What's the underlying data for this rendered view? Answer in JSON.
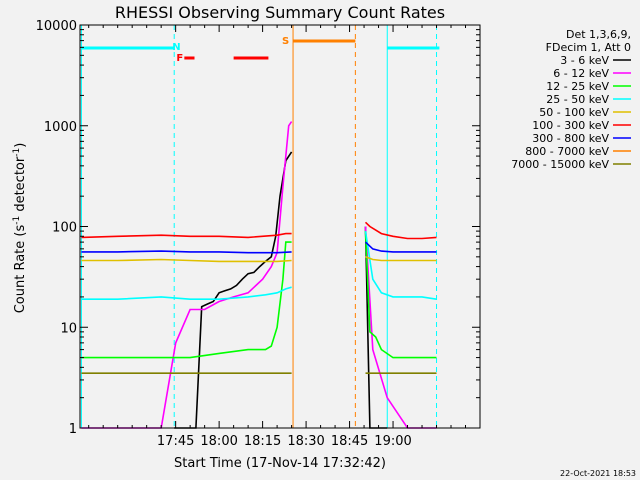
{
  "chart_data": {
    "type": "line",
    "title": "RHESSI Observing Summary Count Rates",
    "xlabel": "Start Time (17-Nov-14 17:32:42)",
    "ylabel_main": "Count Rate (s",
    "ylabel_sup1": "-1",
    "ylabel_mid": " detector",
    "ylabel_sup2": "-1",
    "ylabel_end": ")",
    "y_scale": "log",
    "ylim": [
      1,
      10000
    ],
    "xlim_min": [
      1032,
      1170
    ],
    "x_ticks": [
      {
        "min": 1065,
        "label": "17:45"
      },
      {
        "min": 1080,
        "label": "18:00"
      },
      {
        "min": 1095,
        "label": "18:15"
      },
      {
        "min": 1110,
        "label": "18:30"
      },
      {
        "min": 1125,
        "label": "18:45"
      },
      {
        "min": 1140,
        "label": "19:00"
      }
    ],
    "y_ticks": [
      {
        "value": 1,
        "label": "1"
      },
      {
        "value": 10,
        "label": "10"
      },
      {
        "value": 100,
        "label": "100"
      },
      {
        "value": 1000,
        "label": "1000"
      },
      {
        "value": 10000,
        "label": "10000"
      }
    ],
    "legend_header": [
      "Det 1,3,6,9,",
      "FDecim 1, Att 0"
    ],
    "legend_position": "right",
    "series": [
      {
        "name": "3 - 6 keV",
        "color": "#000000",
        "segments": [
          {
            "x": [
              1064.5,
              1066,
              1068,
              1070,
              1072,
              1074,
              1076,
              1078,
              1080,
              1082,
              1084,
              1086,
              1088,
              1090,
              1092,
              1094,
              1096,
              1098,
              1099.5,
              1101,
              1103,
              1105
            ],
            "y": [
              1,
              1,
              1,
              1,
              1,
              16,
              17,
              18,
              22,
              23,
              24,
              26,
              30,
              34,
              35,
              40,
              45,
              50,
              80,
              200,
              450,
              550
            ]
          },
          {
            "x": [
              1130.5,
              1132,
              1134,
              1136,
              1138
            ],
            "y": [
              100,
              1,
              1,
              1,
              1
            ]
          }
        ]
      },
      {
        "name": "6 - 12 keV",
        "color": "#ff00ff",
        "segments": [
          {
            "x": [
              1032.5,
              1045,
              1060,
              1065,
              1070,
              1075,
              1080,
              1085,
              1090,
              1095,
              1098,
              1100,
              1102,
              1104,
              1105
            ],
            "y": [
              1,
              1,
              1,
              7,
              15,
              15,
              18,
              20,
              22,
              30,
              40,
              55,
              250,
              1000,
              1100
            ]
          },
          {
            "x": [
              1130.5,
              1133,
              1138,
              1145,
              1150,
              1155
            ],
            "y": [
              100,
              6,
              2,
              1,
              1,
              1
            ]
          }
        ]
      },
      {
        "name": "12 - 25 keV",
        "color": "#00ff00",
        "segments": [
          {
            "x": [
              1032.5,
              1045,
              1060,
              1070,
              1080,
              1090,
              1096,
              1098,
              1100,
              1102,
              1103,
              1105
            ],
            "y": [
              5,
              5,
              5,
              5,
              5.5,
              6,
              6,
              6.5,
              10,
              30,
              70,
              70
            ]
          },
          {
            "x": [
              1130.5,
              1132,
              1134,
              1136,
              1140,
              1150,
              1155
            ],
            "y": [
              90,
              9,
              8,
              6,
              5,
              5,
              5
            ]
          }
        ]
      },
      {
        "name": "25 - 50 keV",
        "color": "#00ffff",
        "segments": [
          {
            "x": [
              1032.5,
              1045,
              1060,
              1070,
              1080,
              1090,
              1096,
              1100,
              1103,
              1105
            ],
            "y": [
              19,
              19,
              20,
              19,
              19,
              20,
              21,
              22,
              24,
              25
            ]
          },
          {
            "x": [
              1130.5,
              1133,
              1136,
              1140,
              1150,
              1155
            ],
            "y": [
              90,
              30,
              22,
              20,
              20,
              19
            ]
          }
        ]
      },
      {
        "name": "50 - 100 keV",
        "color": "#e0c000",
        "segments": [
          {
            "x": [
              1032.5,
              1045,
              1060,
              1070,
              1080,
              1090,
              1100,
              1105
            ],
            "y": [
              46,
              46,
              47,
              46,
              45,
              45,
              45,
              46
            ]
          },
          {
            "x": [
              1130.5,
              1133,
              1136,
              1140,
              1150,
              1155
            ],
            "y": [
              50,
              47,
              46,
              46,
              46,
              46
            ]
          }
        ]
      },
      {
        "name": "100 - 300 keV",
        "color": "#ff0000",
        "segments": [
          {
            "x": [
              1032.5,
              1045,
              1060,
              1070,
              1080,
              1090,
              1100,
              1103,
              1105
            ],
            "y": [
              78,
              80,
              82,
              80,
              80,
              78,
              82,
              85,
              85
            ]
          },
          {
            "x": [
              1130.5,
              1132,
              1134,
              1136,
              1140,
              1145,
              1150,
              1155
            ],
            "y": [
              110,
              100,
              92,
              85,
              80,
              76,
              76,
              78
            ]
          }
        ]
      },
      {
        "name": "300 - 800 keV",
        "color": "#0000ff",
        "segments": [
          {
            "x": [
              1032.5,
              1045,
              1060,
              1070,
              1080,
              1090,
              1100,
              1105
            ],
            "y": [
              56,
              56,
              57,
              56,
              56,
              55,
              55,
              56
            ]
          },
          {
            "x": [
              1130.5,
              1133,
              1136,
              1140,
              1150,
              1155
            ],
            "y": [
              70,
              60,
              57,
              56,
              56,
              56
            ]
          }
        ]
      },
      {
        "name": "800 - 7000 keV",
        "color": "#ff8000",
        "segments": []
      },
      {
        "name": "7000 - 15000 keV",
        "color": "#808000",
        "segments": [
          {
            "x": [
              1032.5,
              1045,
              1060,
              1070,
              1080,
              1090,
              1100,
              1105
            ],
            "y": [
              3.5,
              3.5,
              3.5,
              3.5,
              3.5,
              3.5,
              3.5,
              3.5
            ]
          },
          {
            "x": [
              1130.5,
              1140,
              1150,
              1155
            ],
            "y": [
              3.5,
              3.5,
              3.5,
              3.5
            ]
          }
        ]
      }
    ],
    "flags": {
      "night": {
        "label": "N",
        "color": "#00ffff",
        "bars": [
          [
            1032.5,
            1064.5
          ],
          [
            1138,
            1156
          ]
        ],
        "dashed_at": [
          1064.5,
          1155
        ],
        "solid_at": [
          1032.5,
          1138
        ]
      },
      "flare": {
        "label": "F",
        "color": "#ff0000",
        "bars": [
          [
            1068,
            1071.5
          ],
          [
            1085,
            1097
          ]
        ]
      },
      "saa": {
        "label": "S",
        "color": "#ff8000",
        "bars": [
          [
            1105.5,
            1127
          ]
        ],
        "solid_at": [
          1105.5
        ],
        "dashed_at": [
          1127
        ]
      }
    }
  },
  "footer_date": "22-Oct-2021 18:53"
}
